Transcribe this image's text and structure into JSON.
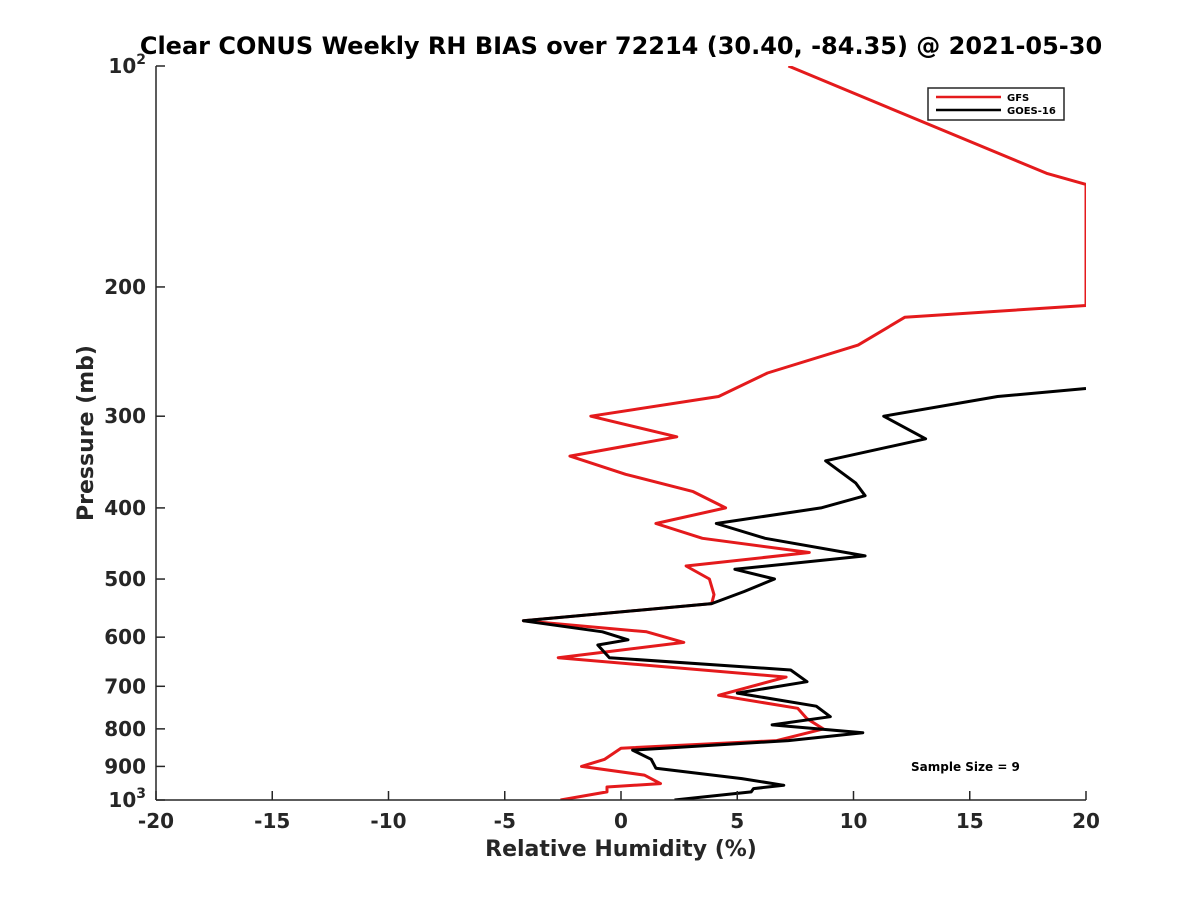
{
  "chart_data": {
    "type": "line",
    "title": "Clear CONUS Weekly RH BIAS over 72214 (30.40, -84.35) @ 2021-05-30",
    "xlabel": "Relative Humidity (%)",
    "ylabel": "Pressure (mb)",
    "xlim": [
      -20,
      20
    ],
    "ylim": [
      100,
      1000
    ],
    "yscale": "log",
    "yreverse": true,
    "xticks": [
      -20,
      -15,
      -10,
      -5,
      0,
      5,
      10,
      15,
      20
    ],
    "xtick_labels": [
      "-20",
      "-15",
      "-10",
      "-5",
      "0",
      "5",
      "10",
      "15",
      "20"
    ],
    "yticks": [
      100,
      200,
      300,
      400,
      500,
      600,
      700,
      800,
      900,
      1000
    ],
    "ytick_labels": [
      {
        "base": "10",
        "exp": "2"
      },
      {
        "base": "200"
      },
      {
        "base": "300"
      },
      {
        "base": "400"
      },
      {
        "base": "500"
      },
      {
        "base": "600"
      },
      {
        "base": "700"
      },
      {
        "base": "800"
      },
      {
        "base": "900"
      },
      {
        "base": "10",
        "exp": "3"
      }
    ],
    "legend_position": "top-right",
    "annotation": "Sample Size = 9",
    "series": [
      {
        "name": "GFS",
        "color": "#e41a1c",
        "points": [
          [
            7.2,
            100
          ],
          [
            18.3,
            140
          ],
          [
            20.0,
            145
          ],
          [
            20.0,
            212
          ],
          [
            12.2,
            220
          ],
          [
            10.2,
            240
          ],
          [
            6.3,
            262
          ],
          [
            4.2,
            282
          ],
          [
            -1.3,
            300
          ],
          [
            2.4,
            320
          ],
          [
            -2.2,
            340
          ],
          [
            0.2,
            360
          ],
          [
            3.1,
            380
          ],
          [
            4.5,
            400
          ],
          [
            1.5,
            420
          ],
          [
            3.5,
            440
          ],
          [
            8.1,
            460
          ],
          [
            2.8,
            480
          ],
          [
            3.8,
            500
          ],
          [
            4.0,
            525
          ],
          [
            3.9,
            540
          ],
          [
            -4.2,
            570
          ],
          [
            1.1,
            590
          ],
          [
            2.7,
            610
          ],
          [
            -2.7,
            640
          ],
          [
            7.1,
            680
          ],
          [
            4.2,
            720
          ],
          [
            7.6,
            750
          ],
          [
            8.0,
            775
          ],
          [
            8.7,
            800
          ],
          [
            6.7,
            830
          ],
          [
            0.0,
            850
          ],
          [
            -0.7,
            880
          ],
          [
            -1.7,
            900
          ],
          [
            1.0,
            925
          ],
          [
            1.7,
            950
          ],
          [
            -0.6,
            960
          ],
          [
            -0.6,
            975
          ],
          [
            -2.6,
            1000
          ]
        ]
      },
      {
        "name": "GOES-16",
        "color": "#000000",
        "points": [
          [
            20.0,
            275
          ],
          [
            16.2,
            282
          ],
          [
            11.3,
            300
          ],
          [
            13.1,
            322
          ],
          [
            8.8,
            345
          ],
          [
            10.1,
            370
          ],
          [
            10.5,
            385
          ],
          [
            8.6,
            400
          ],
          [
            4.1,
            420
          ],
          [
            6.2,
            440
          ],
          [
            10.5,
            465
          ],
          [
            4.9,
            485
          ],
          [
            6.6,
            500
          ],
          [
            5.3,
            520
          ],
          [
            3.9,
            540
          ],
          [
            -4.2,
            570
          ],
          [
            -0.8,
            590
          ],
          [
            0.3,
            605
          ],
          [
            -1.0,
            615
          ],
          [
            -0.5,
            640
          ],
          [
            7.3,
            665
          ],
          [
            8.0,
            690
          ],
          [
            5.0,
            715
          ],
          [
            8.4,
            745
          ],
          [
            9.0,
            770
          ],
          [
            6.5,
            790
          ],
          [
            10.4,
            810
          ],
          [
            7.2,
            830
          ],
          [
            0.5,
            855
          ],
          [
            1.3,
            880
          ],
          [
            1.5,
            905
          ],
          [
            5.2,
            935
          ],
          [
            7.0,
            955
          ],
          [
            5.7,
            965
          ],
          [
            5.6,
            975
          ],
          [
            2.3,
            1000
          ]
        ]
      }
    ]
  }
}
